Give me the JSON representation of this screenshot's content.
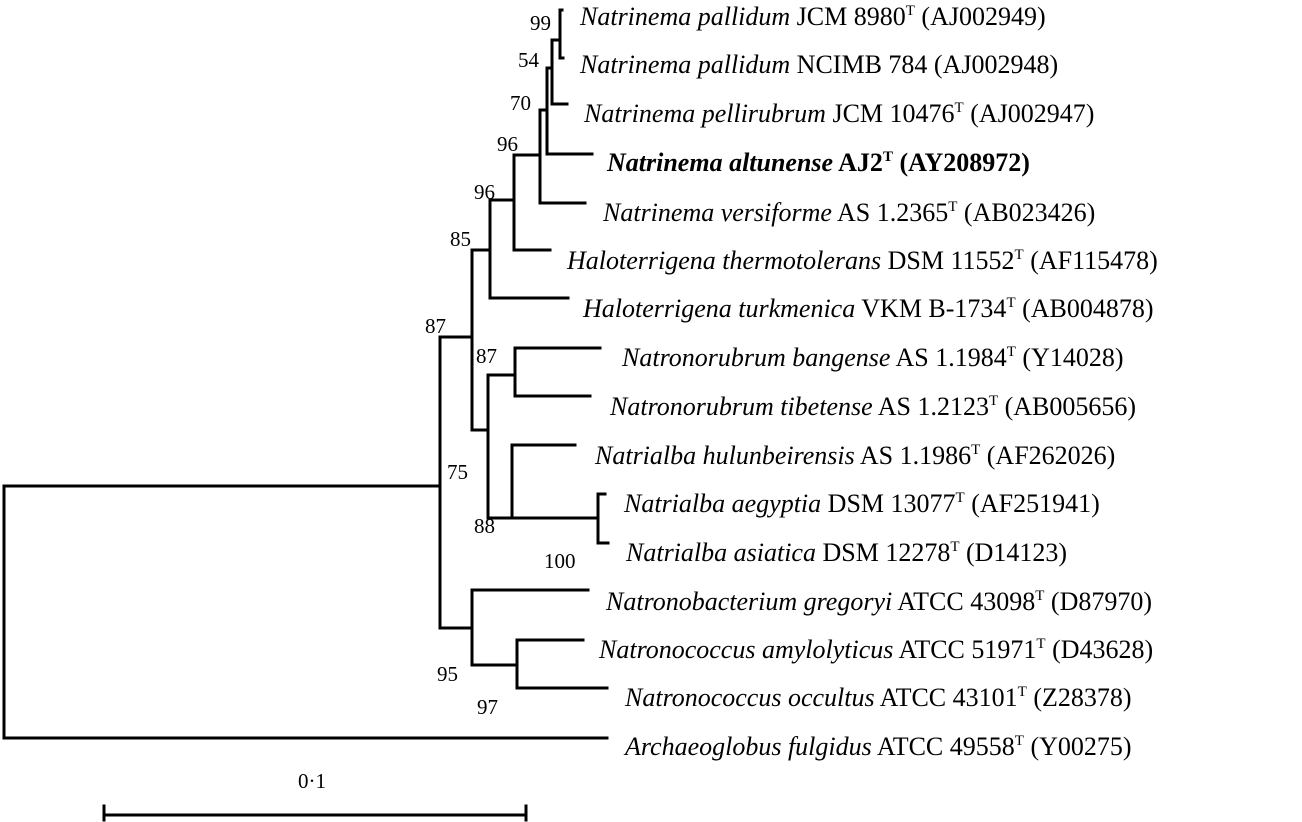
{
  "taxa": [
    {
      "id": "t1",
      "genus": "Natrinema",
      "species": "pallidum",
      "strain": "JCM 8980",
      "type_strain": true,
      "accession": "(AJ002949)",
      "bold": false
    },
    {
      "id": "t2",
      "genus": "Natrinema",
      "species": "pallidum",
      "strain": "NCIMB 784",
      "type_strain": false,
      "accession": "(AJ002948)",
      "bold": false
    },
    {
      "id": "t3",
      "genus": "Natrinema",
      "species": "pellirubrum",
      "strain": "JCM 10476",
      "type_strain": true,
      "accession": "(AJ002947)",
      "bold": false
    },
    {
      "id": "t4",
      "genus": "Natrinema",
      "species": "altunense",
      "strain": "AJ2",
      "type_strain": true,
      "accession": "(AY208972)",
      "bold": true
    },
    {
      "id": "t5",
      "genus": "Natrinema",
      "species": "versiforme",
      "strain": "AS 1.2365",
      "type_strain": true,
      "accession": "(AB023426)",
      "bold": false
    },
    {
      "id": "t6",
      "genus": "Haloterrigena",
      "species": "thermotolerans",
      "strain": "DSM 11552",
      "type_strain": true,
      "accession": "(AF115478)",
      "bold": false
    },
    {
      "id": "t7",
      "genus": "Haloterrigena",
      "species": "turkmenica",
      "strain": "VKM B-1734",
      "type_strain": true,
      "accession": "(AB004878)",
      "bold": false
    },
    {
      "id": "t8",
      "genus": "Natronorubrum",
      "species": "bangense",
      "strain": "AS 1.1984",
      "type_strain": true,
      "accession": "(Y14028)",
      "bold": false
    },
    {
      "id": "t9",
      "genus": "Natronorubrum",
      "species": "tibetense",
      "strain": "AS 1.2123",
      "type_strain": true,
      "accession": "(AB005656)",
      "bold": false
    },
    {
      "id": "t10",
      "genus": "Natrialba",
      "species": "hulunbeirensis",
      "strain": "AS 1.1986",
      "type_strain": true,
      "accession": "(AF262026)",
      "bold": false
    },
    {
      "id": "t11",
      "genus": "Natrialba",
      "species": "aegyptia",
      "strain": "DSM 13077",
      "type_strain": true,
      "accession": "(AF251941)",
      "bold": false
    },
    {
      "id": "t12",
      "genus": "Natrialba",
      "species": "asiatica",
      "strain": "DSM 12278",
      "type_strain": true,
      "accession": "(D14123)",
      "bold": false
    },
    {
      "id": "t13",
      "genus": "Natronobacterium",
      "species": "gregoryi",
      "strain": "ATCC 43098",
      "type_strain": true,
      "accession": "(D87970)",
      "bold": false
    },
    {
      "id": "t14",
      "genus": "Natronococcus",
      "species": "amylolyticus",
      "strain": "ATCC 51971",
      "type_strain": true,
      "accession": "(D43628)",
      "bold": false
    },
    {
      "id": "t15",
      "genus": "Natronococcus",
      "species": "occultus",
      "strain": "ATCC 43101",
      "type_strain": true,
      "accession": "(Z28378)",
      "bold": false
    },
    {
      "id": "t16",
      "genus": "Archaeoglobus",
      "species": "fulgidus",
      "strain": "ATCC 49558",
      "type_strain": true,
      "accession": "(Y00275)",
      "bold": false
    }
  ],
  "type_strain_marker": "T",
  "bootstrap": {
    "b99": "99",
    "b54": "54",
    "b70": "70",
    "b96a": "96",
    "b96b": "96",
    "b85": "85",
    "b87a": "87",
    "b87b": "87",
    "b75": "75",
    "b88": "88",
    "b100": "100",
    "b95": "95",
    "b97": "97"
  },
  "scale_bar": {
    "label": "0·1",
    "value": 0.1
  }
}
